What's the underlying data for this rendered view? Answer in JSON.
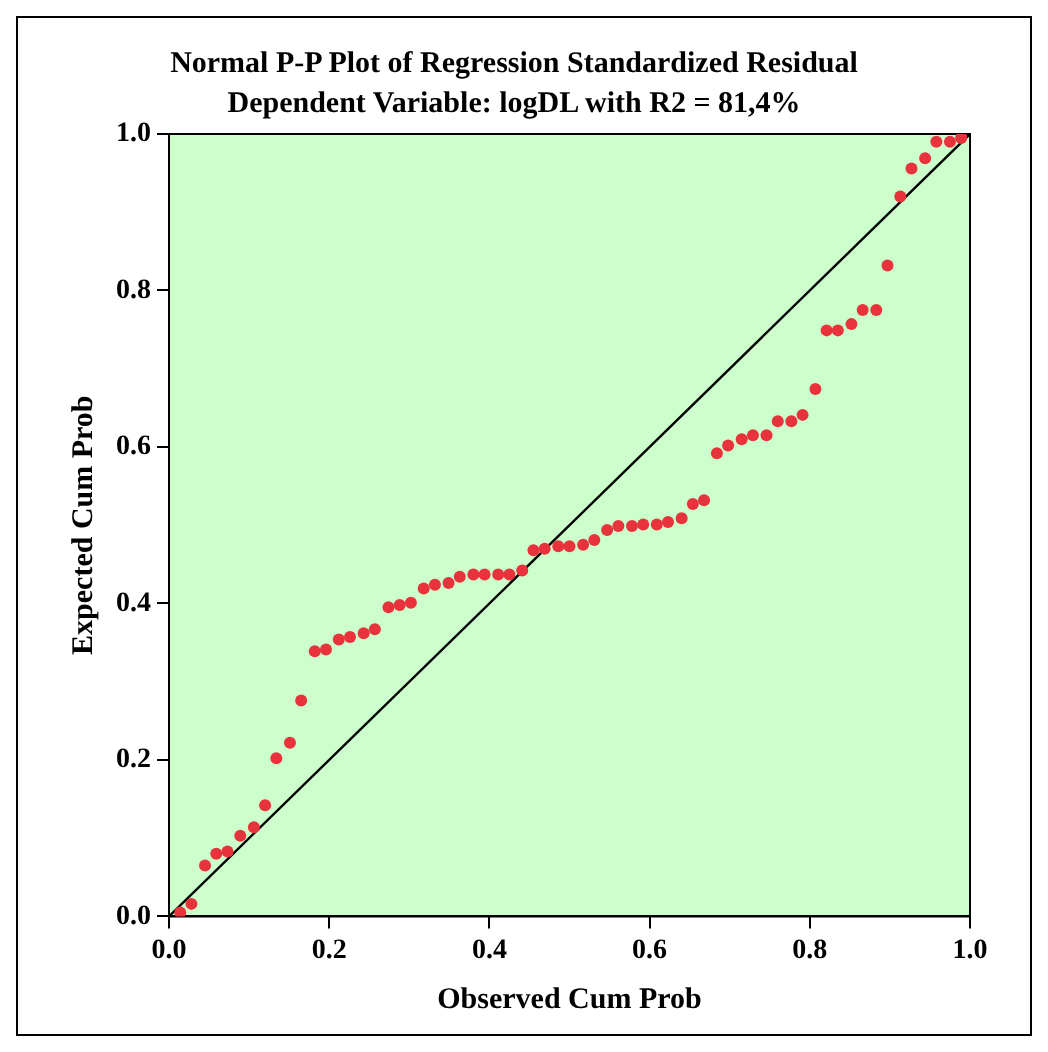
{
  "chart_data": {
    "type": "scatter",
    "title": "Normal P-P Plot of Regression Standardized Residual",
    "subtitle": "Dependent Variable: logDL with R2 = 81,4%",
    "xlabel": "Observed Cum Prob",
    "ylabel": "Expected Cum Prob",
    "xlim": [
      0,
      1
    ],
    "ylim": [
      0,
      1
    ],
    "xticks": [
      {
        "value": 0,
        "label": "0.0"
      },
      {
        "value": 0.2,
        "label": "0.2"
      },
      {
        "value": 0.4,
        "label": "0.4"
      },
      {
        "value": 0.6,
        "label": "0.6"
      },
      {
        "value": 0.8,
        "label": "0.8"
      },
      {
        "value": 1,
        "label": "1.0"
      }
    ],
    "yticks": [
      {
        "value": 0,
        "label": "0.0"
      },
      {
        "value": 0.2,
        "label": "0.2"
      },
      {
        "value": 0.4,
        "label": "0.4"
      },
      {
        "value": 0.6,
        "label": "0.6"
      },
      {
        "value": 0.8,
        "label": "0.8"
      },
      {
        "value": 1,
        "label": "1.0"
      }
    ],
    "grid": false,
    "legend": false,
    "series": [
      {
        "color": "#e8323c",
        "marker": "circle",
        "x": [
          0.014,
          0.028,
          0.045,
          0.059,
          0.073,
          0.089,
          0.106,
          0.12,
          0.134,
          0.151,
          0.165,
          0.182,
          0.196,
          0.212,
          0.226,
          0.243,
          0.257,
          0.274,
          0.288,
          0.302,
          0.318,
          0.332,
          0.349,
          0.363,
          0.38,
          0.394,
          0.411,
          0.425,
          0.441,
          0.455,
          0.469,
          0.486,
          0.5,
          0.517,
          0.531,
          0.547,
          0.561,
          0.578,
          0.592,
          0.609,
          0.623,
          0.64,
          0.654,
          0.668,
          0.684,
          0.698,
          0.715,
          0.729,
          0.746,
          0.76,
          0.777,
          0.791,
          0.807,
          0.821,
          0.835,
          0.852,
          0.866,
          0.883,
          0.897,
          0.913,
          0.927,
          0.944,
          0.958,
          0.975,
          0.989
        ],
        "values": [
          0.005,
          0.016,
          0.065,
          0.08,
          0.083,
          0.103,
          0.114,
          0.142,
          0.202,
          0.222,
          0.276,
          0.339,
          0.341,
          0.354,
          0.357,
          0.362,
          0.367,
          0.395,
          0.398,
          0.401,
          0.419,
          0.424,
          0.426,
          0.434,
          0.437,
          0.437,
          0.437,
          0.437,
          0.442,
          0.468,
          0.47,
          0.473,
          0.473,
          0.475,
          0.481,
          0.494,
          0.499,
          0.499,
          0.501,
          0.501,
          0.504,
          0.509,
          0.527,
          0.532,
          0.592,
          0.602,
          0.61,
          0.615,
          0.615,
          0.633,
          0.633,
          0.641,
          0.674,
          0.749,
          0.749,
          0.757,
          0.775,
          0.775,
          0.832,
          0.92,
          0.956,
          0.969,
          0.99,
          0.99,
          0.995
        ]
      },
      {
        "type": "line",
        "color": "#000000",
        "line_style": "solid",
        "marker": "none",
        "x": [
          0,
          1
        ],
        "values": [
          0,
          1
        ]
      }
    ]
  }
}
